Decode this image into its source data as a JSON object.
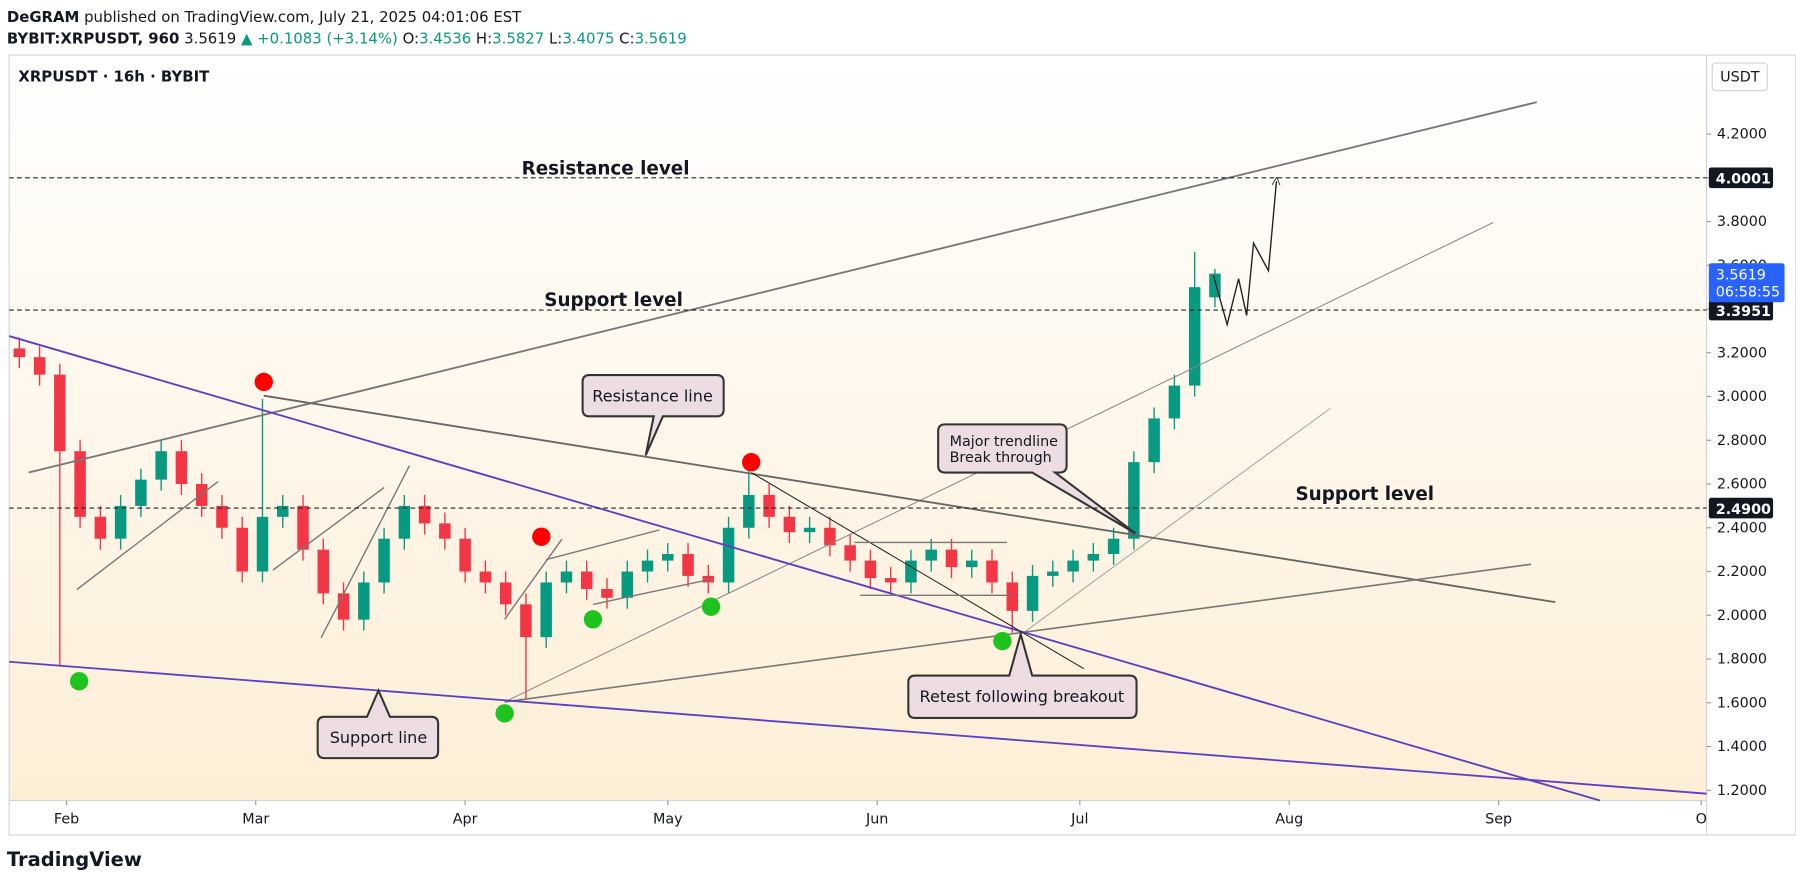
{
  "header": {
    "author": "DeGRAM",
    "published": "published on TradingView.com, July 21, 2025 04:01:06 EST",
    "symbol": "BYBIT:XRPUSDT, 960",
    "last": "3.5619",
    "change": "▲ +0.1083 (+3.14%)",
    "o_label": "O:",
    "o": "3.4536",
    "h_label": "H:",
    "h": "3.5827",
    "l_label": "L:",
    "l": "3.4075",
    "c_label": "C:",
    "c": "3.5619"
  },
  "chart_data": {
    "type": "candlestick",
    "title": "XRPUSDT · 16h · BYBIT",
    "y_axis_label": "USDT",
    "x": [
      24,
      27,
      30,
      33,
      36,
      39,
      42,
      45,
      48,
      51,
      54,
      57,
      60,
      63,
      66,
      69,
      72,
      75,
      78,
      81,
      84,
      87,
      90,
      93,
      96,
      99,
      102,
      105,
      108,
      111,
      114,
      117,
      120,
      123,
      126,
      129,
      132,
      135,
      138,
      141,
      144,
      147,
      150,
      153,
      156,
      159,
      162,
      165,
      168,
      171,
      174,
      177,
      180,
      183,
      186,
      189,
      192,
      195,
      198,
      201
    ],
    "open": [
      3.22,
      3.18,
      3.1,
      2.75,
      2.45,
      2.35,
      2.5,
      2.62,
      2.75,
      2.6,
      2.5,
      2.4,
      2.2,
      2.45,
      2.5,
      2.3,
      2.1,
      1.98,
      2.15,
      2.35,
      2.5,
      2.42,
      2.35,
      2.2,
      2.15,
      2.05,
      1.9,
      2.15,
      2.2,
      2.12,
      2.08,
      2.2,
      2.25,
      2.28,
      2.18,
      2.15,
      2.4,
      2.55,
      2.45,
      2.38,
      2.4,
      2.32,
      2.25,
      2.17,
      2.15,
      2.25,
      2.3,
      2.22,
      2.25,
      2.15,
      2.02,
      2.18,
      2.2,
      2.25,
      2.28,
      2.35,
      2.7,
      2.9,
      3.05,
      3.4536
    ],
    "high": [
      3.27,
      3.23,
      3.15,
      2.8,
      2.5,
      2.55,
      2.67,
      2.8,
      2.8,
      2.65,
      2.55,
      2.45,
      2.99,
      2.55,
      2.55,
      2.35,
      2.15,
      2.2,
      2.4,
      2.55,
      2.55,
      2.47,
      2.4,
      2.25,
      2.2,
      2.1,
      2.2,
      2.25,
      2.25,
      2.17,
      2.25,
      2.3,
      2.33,
      2.33,
      2.23,
      2.45,
      2.66,
      2.6,
      2.5,
      2.45,
      2.45,
      2.37,
      2.3,
      2.22,
      2.3,
      2.35,
      2.35,
      2.3,
      2.3,
      2.2,
      2.23,
      2.25,
      2.3,
      2.33,
      2.4,
      2.75,
      2.95,
      3.1,
      3.66,
      3.5827
    ],
    "low": [
      3.13,
      3.05,
      1.77,
      2.4,
      2.3,
      2.3,
      2.45,
      2.57,
      2.55,
      2.45,
      2.35,
      2.15,
      2.15,
      2.4,
      2.25,
      2.05,
      1.93,
      1.93,
      2.1,
      2.3,
      2.37,
      2.3,
      2.15,
      2.1,
      2.0,
      1.62,
      1.85,
      2.1,
      2.07,
      2.03,
      2.03,
      2.15,
      2.2,
      2.13,
      2.1,
      2.1,
      2.35,
      2.4,
      2.33,
      2.33,
      2.27,
      2.2,
      2.12,
      2.1,
      2.1,
      2.2,
      2.17,
      2.17,
      2.1,
      1.92,
      1.97,
      2.13,
      2.15,
      2.2,
      2.23,
      2.3,
      2.65,
      2.85,
      3.0,
      3.4075
    ],
    "close": [
      3.18,
      3.1,
      2.75,
      2.45,
      2.35,
      2.5,
      2.62,
      2.75,
      2.6,
      2.5,
      2.4,
      2.2,
      2.45,
      2.5,
      2.3,
      2.1,
      1.98,
      2.15,
      2.35,
      2.5,
      2.42,
      2.35,
      2.2,
      2.15,
      2.05,
      1.9,
      2.15,
      2.2,
      2.12,
      2.08,
      2.2,
      2.25,
      2.28,
      2.18,
      2.15,
      2.4,
      2.55,
      2.45,
      2.38,
      2.4,
      2.32,
      2.25,
      2.17,
      2.15,
      2.25,
      2.3,
      2.22,
      2.25,
      2.15,
      2.02,
      2.18,
      2.2,
      2.25,
      2.28,
      2.35,
      2.7,
      2.9,
      3.05,
      3.5,
      3.5619
    ],
    "up_color": "#089981",
    "down_color": "#f23645",
    "xlim": [
      22.5,
      273.78
    ],
    "xticks": [
      {
        "value": 31,
        "label": "Feb"
      },
      {
        "value": 59,
        "label": "Mar"
      },
      {
        "value": 90,
        "label": "Apr"
      },
      {
        "value": 120,
        "label": "May"
      },
      {
        "value": 151,
        "label": "Jun"
      },
      {
        "value": 181,
        "label": "Jul"
      },
      {
        "value": 212,
        "label": "Aug"
      },
      {
        "value": 243,
        "label": "Sep"
      },
      {
        "value": 273,
        "label": "O"
      }
    ],
    "ylim": [
      1.153,
      4.561
    ],
    "yticks": [
      {
        "value": 1.2,
        "label": "1.2000"
      },
      {
        "value": 1.4,
        "label": "1.4000"
      },
      {
        "value": 1.6,
        "label": "1.6000"
      },
      {
        "value": 1.8,
        "label": "1.8000"
      },
      {
        "value": 2,
        "label": "2.0000"
      },
      {
        "value": 2.2,
        "label": "2.2000"
      },
      {
        "value": 2.4,
        "label": "2.4000"
      },
      {
        "value": 2.6,
        "label": "2.6000"
      },
      {
        "value": 2.8,
        "label": "2.8000"
      },
      {
        "value": 3,
        "label": "3.0000"
      },
      {
        "value": 3.2,
        "label": "3.2000"
      },
      {
        "value": 3.4,
        "label": "3.4000"
      },
      {
        "value": 3.6,
        "label": "3.6000"
      },
      {
        "value": 3.8,
        "label": "3.8000"
      },
      {
        "value": 4,
        "label": "4.0000"
      },
      {
        "value": 4.2,
        "label": "4.2000"
      }
    ],
    "levels": [
      {
        "value": 4.0001,
        "label": "4.0001",
        "text": "Resistance level"
      },
      {
        "value": 3.3951,
        "label": "3.3951",
        "text": "Support level"
      },
      {
        "value": 2.49,
        "label": "2.4900",
        "text": "Support level"
      }
    ],
    "last_price": {
      "value": 3.5619,
      "label": "3.5619",
      "countdown": "06:58:55"
    },
    "annotations": {
      "resistance_line": "Resistance line",
      "support_line": "Support line",
      "trendline": [
        "Major trendline",
        "Break through"
      ],
      "retest": "Retest following breakout"
    }
  },
  "footer": {
    "brand": "TradingView"
  }
}
